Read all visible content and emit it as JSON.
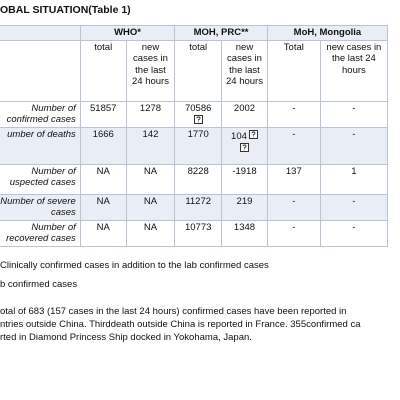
{
  "title": "OBAL SITUATION(Table 1)",
  "table": {
    "groups": [
      "WHO*",
      "MOH, PRC**",
      "MoH, Mongolia"
    ],
    "subheaders": [
      "total",
      "new cases in the last 24 hours",
      "total",
      "new cases in the last 24 hours",
      "Total",
      "new cases in the last 24 hours"
    ],
    "rows": [
      {
        "label": "Number of confirmed cases",
        "cells": [
          51857,
          1278,
          70586,
          2002,
          "-",
          "-"
        ]
      },
      {
        "label": "umber of deaths",
        "cells": [
          1666,
          142,
          1770,
          104,
          "-",
          "-"
        ]
      },
      {
        "label": "Number of uspected cases",
        "cells": [
          "NA",
          "NA",
          8228,
          -1918,
          137,
          1
        ]
      },
      {
        "label": "Number of severe cases",
        "cells": [
          "NA",
          "NA",
          11272,
          219,
          "-",
          "-"
        ]
      },
      {
        "label": "Number of recovered cases",
        "cells": [
          "NA",
          "NA",
          10773,
          1348,
          "-",
          "-"
        ]
      }
    ]
  },
  "footnotes": [
    "Clinically confirmed cases in addition to the lab confirmed cases",
    "b confirmed cases"
  ],
  "paragraph": [
    "otal of 683 (157 cases in the last 24 hours) confirmed cases have been reported in",
    "ntries outside China. Thirddeath outside China is reported in France.  355confirmed ca",
    "rted in Diamond Princess Ship docked in Yokohama, Japan."
  ]
}
